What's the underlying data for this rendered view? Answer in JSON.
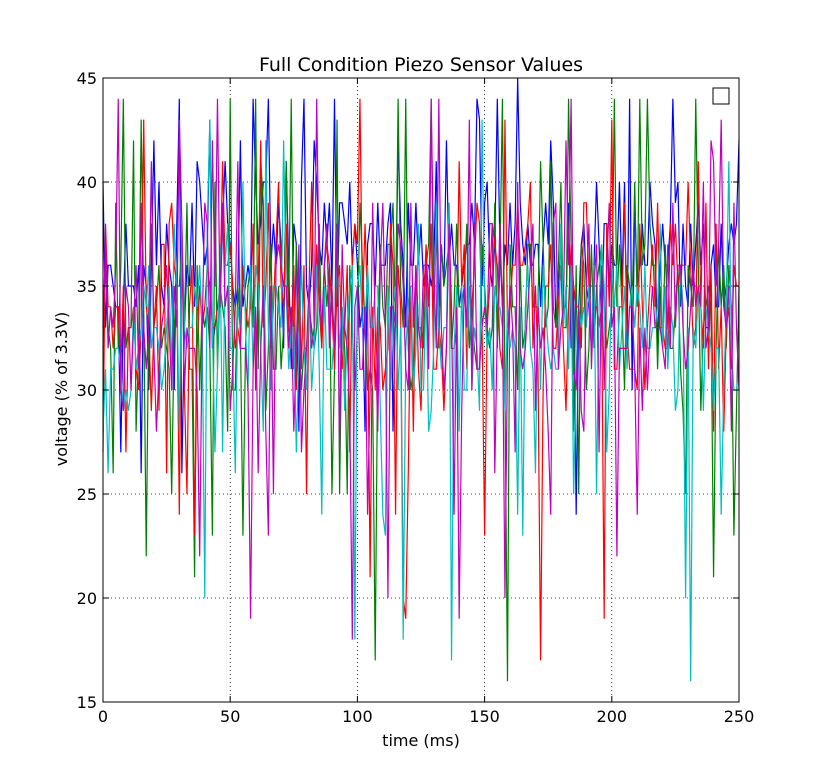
{
  "chart_data": {
    "type": "line",
    "title": "Full Condition Piezo Sensor Values",
    "xlabel": "time (ms)",
    "ylabel": "voltage (% of 3.3V)",
    "xlim": [
      0,
      250
    ],
    "ylim": [
      15,
      45
    ],
    "xticks": [
      0,
      50,
      100,
      150,
      200,
      250
    ],
    "yticks": [
      15,
      20,
      25,
      30,
      35,
      40,
      45
    ],
    "grid": true,
    "legend": "top-right, empty",
    "series": [
      {
        "color": "#0000ff",
        "center": 36,
        "spread": 2.2,
        "seed": 11,
        "spikes": [
          [
            0,
            40
          ],
          [
            15,
            26
          ],
          [
            30,
            44
          ],
          [
            31,
            26
          ],
          [
            48,
            41
          ],
          [
            60,
            40
          ],
          [
            78,
            40
          ],
          [
            99,
            38
          ],
          [
            116,
            42
          ],
          [
            147,
            44
          ],
          [
            163,
            45
          ],
          [
            166,
            36
          ],
          [
            176,
            42
          ],
          [
            186,
            24
          ],
          [
            193,
            36
          ],
          [
            203,
            40
          ],
          [
            215,
            40
          ],
          [
            226,
            40
          ],
          [
            243,
            38
          ],
          [
            248,
            37
          ]
        ]
      },
      {
        "color": "#008000",
        "center": 34,
        "spread": 2.6,
        "seed": 23,
        "spikes": [
          [
            15,
            43
          ],
          [
            17,
            22
          ],
          [
            27,
            25
          ],
          [
            36,
            21
          ],
          [
            62,
            41
          ],
          [
            72,
            41
          ],
          [
            98,
            33
          ],
          [
            107,
            17
          ],
          [
            138,
            34
          ],
          [
            159,
            16
          ],
          [
            186,
            36
          ],
          [
            210,
            34
          ],
          [
            225,
            34
          ],
          [
            240,
            21
          ],
          [
            248,
            23
          ]
        ]
      },
      {
        "color": "#ff0000",
        "center": 34,
        "spread": 2.4,
        "seed": 37,
        "spikes": [
          [
            1,
            38
          ],
          [
            16,
            43
          ],
          [
            50,
            37
          ],
          [
            105,
            21
          ],
          [
            118,
            20
          ],
          [
            119,
            19
          ],
          [
            150,
            23
          ],
          [
            172,
            17
          ],
          [
            197,
            19
          ],
          [
            245,
            33
          ],
          [
            249,
            35
          ]
        ]
      },
      {
        "color": "#00bfbf",
        "center": 33,
        "spread": 2.4,
        "seed": 53,
        "spikes": [
          [
            40,
            20
          ],
          [
            86,
            24
          ],
          [
            99,
            18
          ],
          [
            118,
            18
          ],
          [
            137,
            17
          ],
          [
            170,
            26
          ],
          [
            229,
            20
          ],
          [
            231,
            16
          ]
        ]
      },
      {
        "color": "#bf00bf",
        "center": 33,
        "spread": 2.6,
        "seed": 71,
        "spikes": [
          [
            38,
            22
          ],
          [
            58,
            19
          ],
          [
            84,
            44
          ],
          [
            98,
            18
          ],
          [
            112,
            20
          ],
          [
            140,
            19
          ],
          [
            158,
            20
          ],
          [
            184,
            44
          ],
          [
            210,
            24
          ],
          [
            239,
            42
          ]
        ]
      }
    ]
  }
}
